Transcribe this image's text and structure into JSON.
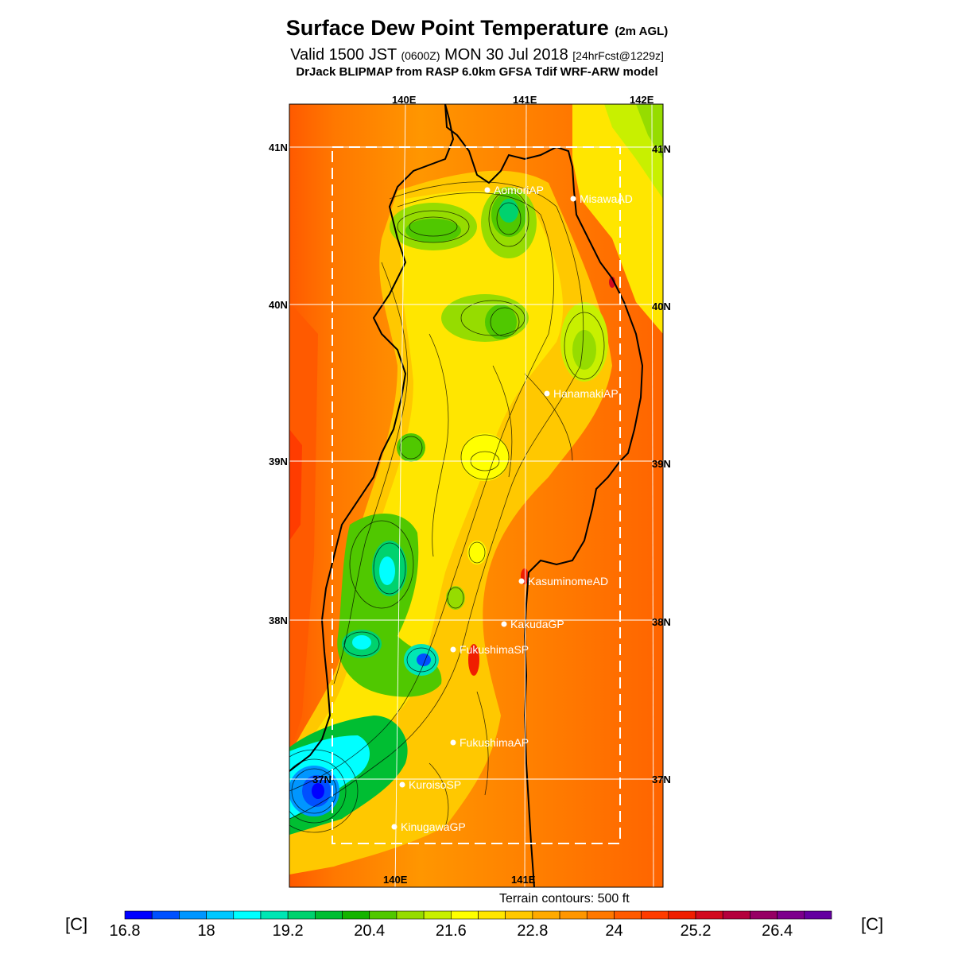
{
  "title": {
    "main": "Surface Dew Point Temperature",
    "agl": "(2m AGL)"
  },
  "valid": {
    "prefix": "Valid 1500 JST",
    "zulu": "(0600Z)",
    "date": "MON 30 Jul 2018",
    "fcst": "[24hrFcst@1229z]"
  },
  "model_line": "DrJack BLIPMAP from RASP 6.0km GFSA Tdif WRF-ARW model",
  "lon_top": [
    "140E",
    "141E",
    "142E"
  ],
  "lon_bottom": [
    "140E",
    "141E"
  ],
  "lat_left": [
    "41N",
    "40N",
    "39N",
    "38N",
    "37N"
  ],
  "lat_right": [
    "41N",
    "40N",
    "39N",
    "38N",
    "37N"
  ],
  "stations": [
    "AomoriAP",
    "MisawaAD",
    "HanamakiAP",
    "KasuminomeAD",
    "KakudaGP",
    "FukushimaSP",
    "FukushimaAP",
    "KuroisoSP",
    "KinugawaGP"
  ],
  "terrain_note": "Terrain contours: 500 ft",
  "colorbar": {
    "unit_left": "[C]",
    "unit_right": "[C]",
    "labels": [
      "16.8",
      "18",
      "19.2",
      "20.4",
      "21.6",
      "22.8",
      "24",
      "25.2",
      "26.4"
    ],
    "colors": [
      "#0000ff",
      "#0050ff",
      "#0096ff",
      "#00c8ff",
      "#00ffff",
      "#00e6b4",
      "#00d26e",
      "#00be32",
      "#14b400",
      "#50c800",
      "#96dc00",
      "#c8f000",
      "#ffff00",
      "#ffe600",
      "#ffc800",
      "#ffaa00",
      "#ff9600",
      "#ff7800",
      "#ff5a00",
      "#ff3c00",
      "#f01e00",
      "#d20a1e",
      "#b4003c",
      "#960064",
      "#7d008c",
      "#6400a0"
    ]
  }
}
